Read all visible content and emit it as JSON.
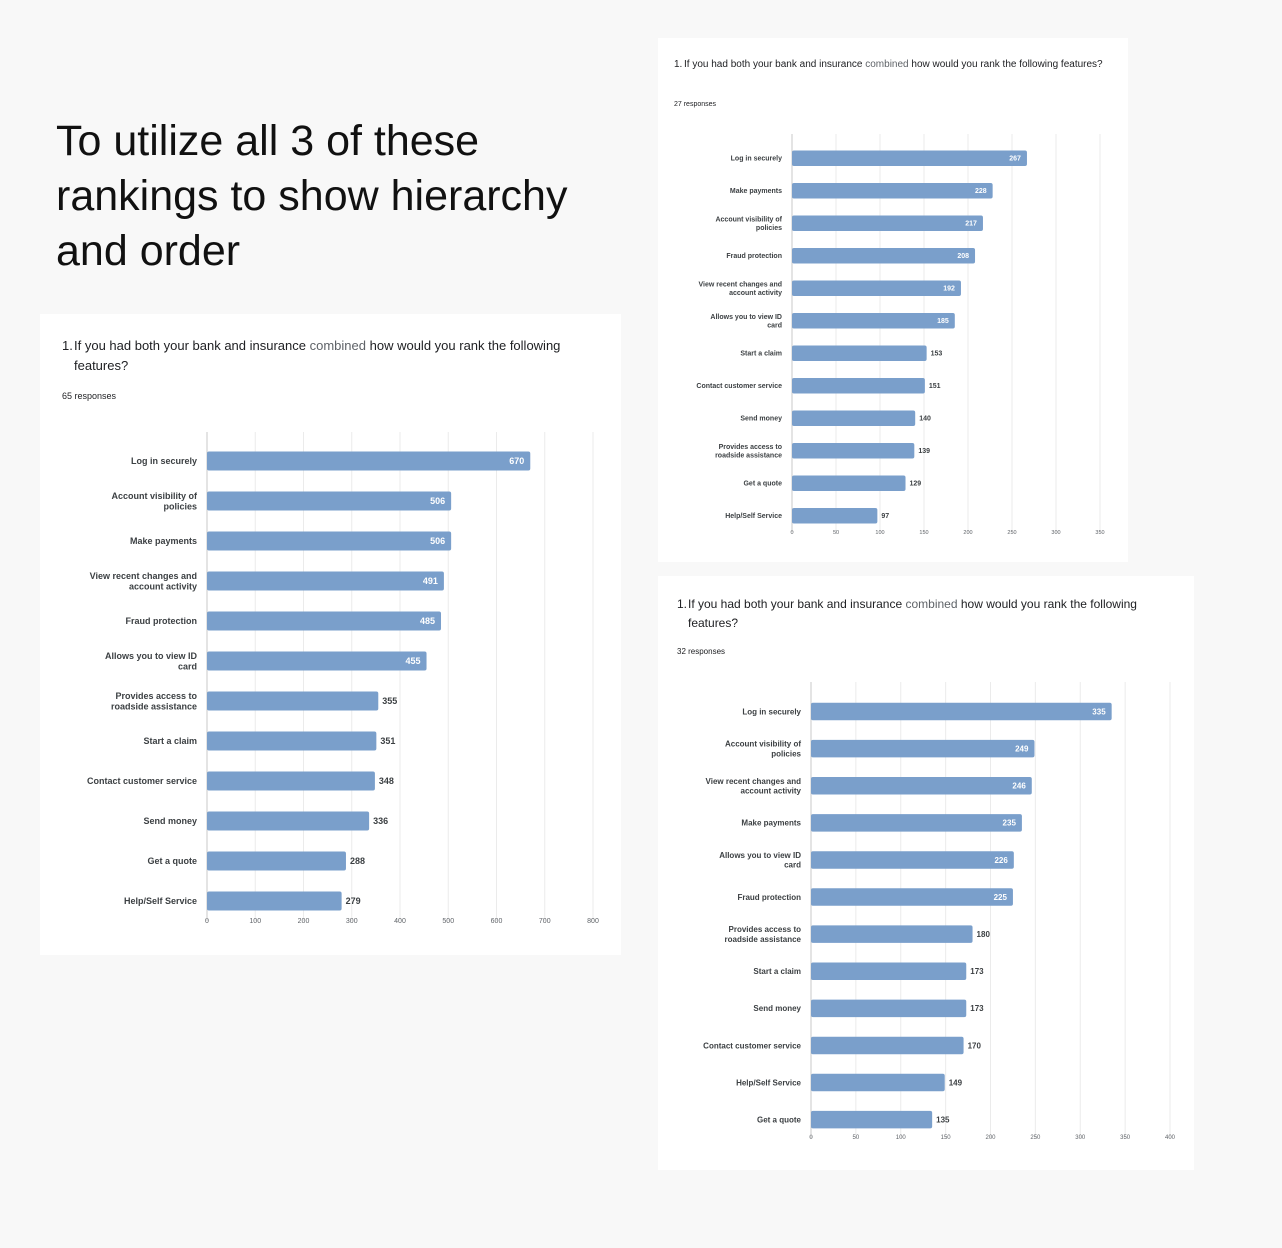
{
  "heading": "To utilize all 3 of these rankings to show hierarchy and order",
  "chart_data": [
    {
      "type": "bar",
      "orientation": "horizontal",
      "title": {
        "prefix": "1.",
        "before": "If you had both your bank and insurance",
        "highlight": "combined",
        "after": "how would you rank the following features?"
      },
      "subtitle": "65 responses",
      "categories": [
        "Log in securely",
        "Account visibility of policies",
        "Make payments",
        "View recent changes and account activity",
        "Fraud protection",
        "Allows you to view ID card",
        "Provides access to roadside assistance",
        "Start a claim",
        "Contact customer service",
        "Send money",
        "Get a quote",
        "Help/Self Service"
      ],
      "values": [
        670,
        506,
        506,
        491,
        485,
        455,
        355,
        351,
        348,
        336,
        288,
        279
      ],
      "xlim": [
        0,
        800
      ],
      "xticks": [
        0,
        100,
        200,
        300,
        400,
        500,
        600,
        700,
        800
      ],
      "grid": true,
      "bar_color": "#7a9fcb"
    },
    {
      "type": "bar",
      "orientation": "horizontal",
      "title": {
        "prefix": "1.",
        "before": "If you had both your bank and insurance",
        "highlight": "combined",
        "after": "how would you rank the following features?"
      },
      "subtitle": "27 responses",
      "categories": [
        "Log in securely",
        "Make payments",
        "Account visibility of policies",
        "Fraud protection",
        "View recent changes and account activity",
        "Allows you to view ID card",
        "Start a claim",
        "Contact customer service",
        "Send money",
        "Provides access to roadside assistance",
        "Get a quote",
        "Help/Self Service"
      ],
      "values": [
        267,
        228,
        217,
        208,
        192,
        185,
        153,
        151,
        140,
        139,
        129,
        97
      ],
      "xlim": [
        0,
        350
      ],
      "xticks": [
        0,
        50,
        100,
        150,
        200,
        250,
        300,
        350
      ],
      "grid": true,
      "bar_color": "#7a9fcb"
    },
    {
      "type": "bar",
      "orientation": "horizontal",
      "title": {
        "prefix": "1.",
        "before": "If you had both your bank and insurance",
        "highlight": "combined",
        "after": "how would you rank the following features?"
      },
      "subtitle": "32 responses",
      "categories": [
        "Log in securely",
        "Account visibility of policies",
        "View recent changes and account activity",
        "Make payments",
        "Allows you to view ID card",
        "Fraud protection",
        "Provides access to roadside assistance",
        "Start a claim",
        "Send money",
        "Contact customer service",
        "Help/Self Service",
        "Get a quote"
      ],
      "values": [
        335,
        249,
        246,
        235,
        226,
        225,
        180,
        173,
        173,
        170,
        149,
        135
      ],
      "xlim": [
        0,
        400
      ],
      "xticks": [
        0,
        50,
        100,
        150,
        200,
        250,
        300,
        350,
        400
      ],
      "grid": true,
      "bar_color": "#7a9fcb"
    }
  ]
}
